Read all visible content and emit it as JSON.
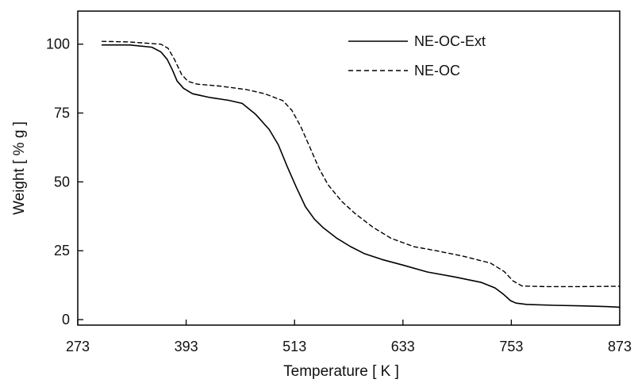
{
  "chart_data": {
    "type": "line",
    "title": "",
    "xlabel": "Temperature [ K ]",
    "ylabel": "Weight [ % g ]",
    "xlim": [
      273,
      873
    ],
    "ylim": [
      -2,
      112
    ],
    "x_ticks": [
      273,
      393,
      513,
      633,
      753,
      873
    ],
    "y_ticks": [
      0,
      25,
      50,
      75,
      100
    ],
    "x_tick_labels": [
      "273",
      "393",
      "513",
      "633",
      "753",
      "873"
    ],
    "y_tick_labels": [
      "0",
      "25",
      "50",
      "75",
      "100"
    ],
    "grid": false,
    "legend_position": "top-right",
    "series": [
      {
        "name": "NE-OC-Ext",
        "style": "solid",
        "color": "#000000",
        "x": [
          300,
          330,
          355,
          365,
          372,
          378,
          383,
          390,
          400,
          420,
          440,
          455,
          470,
          485,
          495,
          505,
          515,
          525,
          535,
          545,
          560,
          575,
          590,
          610,
          633,
          660,
          690,
          720,
          735,
          745,
          752,
          758,
          770,
          800,
          830,
          860,
          873
        ],
        "y": [
          99.7,
          99.7,
          98.9,
          97.2,
          94.5,
          90.5,
          86.6,
          84.0,
          82.0,
          80.6,
          79.6,
          78.5,
          74.5,
          69.0,
          63.5,
          55.5,
          48.0,
          41.0,
          36.5,
          33.3,
          29.5,
          26.5,
          24.0,
          21.8,
          19.8,
          17.3,
          15.5,
          13.5,
          11.5,
          9.0,
          6.9,
          6.0,
          5.5,
          5.2,
          5.0,
          4.7,
          4.5
        ]
      },
      {
        "name": "NE-OC",
        "style": "dashed",
        "color": "#000000",
        "x": [
          300,
          330,
          365,
          373,
          380,
          388,
          395,
          405,
          430,
          460,
          480,
          500,
          510,
          520,
          530,
          540,
          550,
          565,
          580,
          600,
          620,
          645,
          670,
          700,
          730,
          745,
          755,
          765,
          790,
          830,
          873
        ],
        "y": [
          101.0,
          100.8,
          100.0,
          98.5,
          94.5,
          89.0,
          86.5,
          85.5,
          84.8,
          83.5,
          82.0,
          79.5,
          76.0,
          70.0,
          62.5,
          55.0,
          49.0,
          43.0,
          38.5,
          33.5,
          29.5,
          26.5,
          25.0,
          23.0,
          20.5,
          17.5,
          14.0,
          12.2,
          12.0,
          12.0,
          12.1
        ]
      }
    ]
  }
}
